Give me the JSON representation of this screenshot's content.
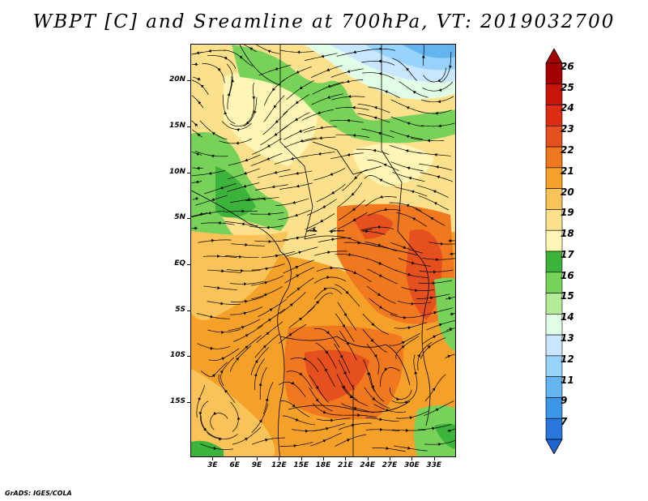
{
  "title": "WBPT [C] and Sreamline at 700hPa, VT: 2019032700",
  "footer": "GrADS: IGES/COLA",
  "map": {
    "lon_range": [
      0,
      36
    ],
    "lat_range": [
      -21,
      24
    ],
    "y_axis_labels": [
      {
        "text": "20N",
        "lat": 20
      },
      {
        "text": "15N",
        "lat": 15
      },
      {
        "text": "10N",
        "lat": 10
      },
      {
        "text": "5N",
        "lat": 5
      },
      {
        "text": "EQ",
        "lat": 0
      },
      {
        "text": "5S",
        "lat": -5
      },
      {
        "text": "10S",
        "lat": -10
      },
      {
        "text": "15S",
        "lat": -15
      }
    ],
    "x_axis_labels": [
      {
        "text": "3E",
        "lon": 3
      },
      {
        "text": "6E",
        "lon": 6
      },
      {
        "text": "9E",
        "lon": 9
      },
      {
        "text": "12E",
        "lon": 12
      },
      {
        "text": "15E",
        "lon": 15
      },
      {
        "text": "18E",
        "lon": 18
      },
      {
        "text": "21E",
        "lon": 21
      },
      {
        "text": "24E",
        "lon": 24
      },
      {
        "text": "27E",
        "lon": 27
      },
      {
        "text": "30E",
        "lon": 30
      },
      {
        "text": "33E",
        "lon": 33
      }
    ]
  },
  "colorbar": {
    "levels": [
      {
        "label": "26",
        "color": "#a50000"
      },
      {
        "label": "25",
        "color": "#c8140a"
      },
      {
        "label": "24",
        "color": "#dc2d14"
      },
      {
        "label": "23",
        "color": "#e6501e"
      },
      {
        "label": "22",
        "color": "#f0781e"
      },
      {
        "label": "21",
        "color": "#f5a028"
      },
      {
        "label": "20",
        "color": "#fac35a"
      },
      {
        "label": "19",
        "color": "#fde08c"
      },
      {
        "label": "18",
        "color": "#fff5b4"
      },
      {
        "label": "17",
        "color": "#3cb43c"
      },
      {
        "label": "16",
        "color": "#78d25a"
      },
      {
        "label": "15",
        "color": "#b4eb96"
      },
      {
        "label": "14",
        "color": "#e1ffe6"
      },
      {
        "label": "13",
        "color": "#c8e6ff"
      },
      {
        "label": "12",
        "color": "#96d2fa"
      },
      {
        "label": "11",
        "color": "#64b4f0"
      },
      {
        "label": "9",
        "color": "#3c96e6"
      },
      {
        "label": "7",
        "color": "#2878dc"
      }
    ],
    "bottom_color": "#1e64d2"
  }
}
